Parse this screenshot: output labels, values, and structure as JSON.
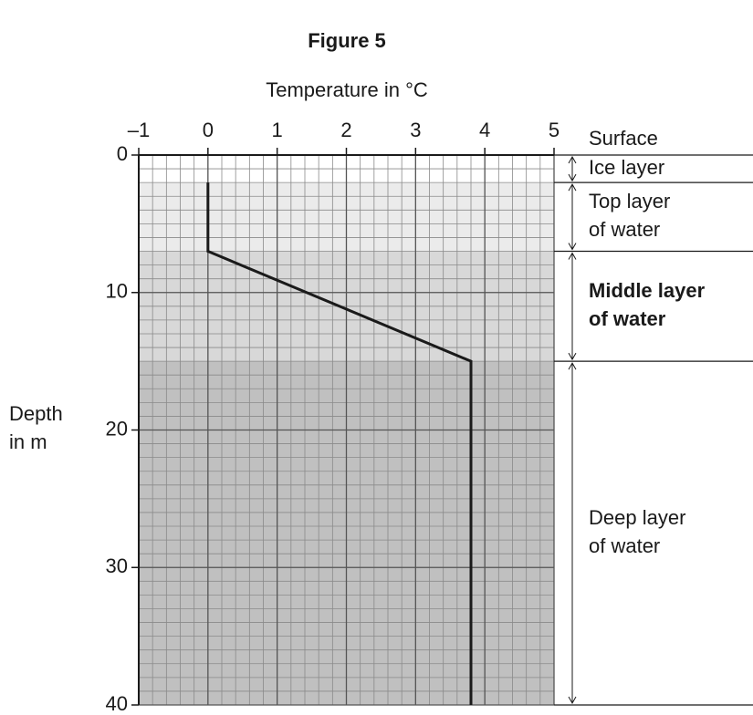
{
  "chart_data": {
    "type": "line",
    "title": "Figure 5",
    "xlabel": "Temperature in °C",
    "ylabel": [
      "Depth",
      "in m"
    ],
    "xlim": [
      -1,
      5
    ],
    "xticks": [
      {
        "value": -1,
        "label": "–1"
      },
      0,
      1,
      2,
      3,
      4,
      5
    ],
    "ylim": [
      0,
      40
    ],
    "yticks": [
      0,
      10,
      20,
      30,
      40
    ],
    "y_inverted": true,
    "grid": true,
    "minor_grid": {
      "x": 0.2,
      "y": 1
    },
    "series": [
      {
        "name": "Temperature",
        "color": "#1a1a1a",
        "x": [
          0,
          0,
          3.8,
          3.8
        ],
        "values": [
          2,
          7,
          15,
          40
        ]
      }
    ],
    "surface_label": "Surface",
    "layers": [
      {
        "name": [
          "Ice layer"
        ],
        "from": 0,
        "to": 2,
        "color": "#ffffff",
        "bold": false
      },
      {
        "name": [
          "Top layer",
          "of water"
        ],
        "from": 2,
        "to": 7,
        "color": "#ebebeb",
        "bold": false
      },
      {
        "name": [
          "Middle layer",
          "of water"
        ],
        "from": 7,
        "to": 15,
        "color": "#d8d8d8",
        "bold": true
      },
      {
        "name": [
          "Deep layer",
          "of water"
        ],
        "from": 15,
        "to": 40,
        "color": "#c0c0c0",
        "bold": false
      }
    ]
  }
}
